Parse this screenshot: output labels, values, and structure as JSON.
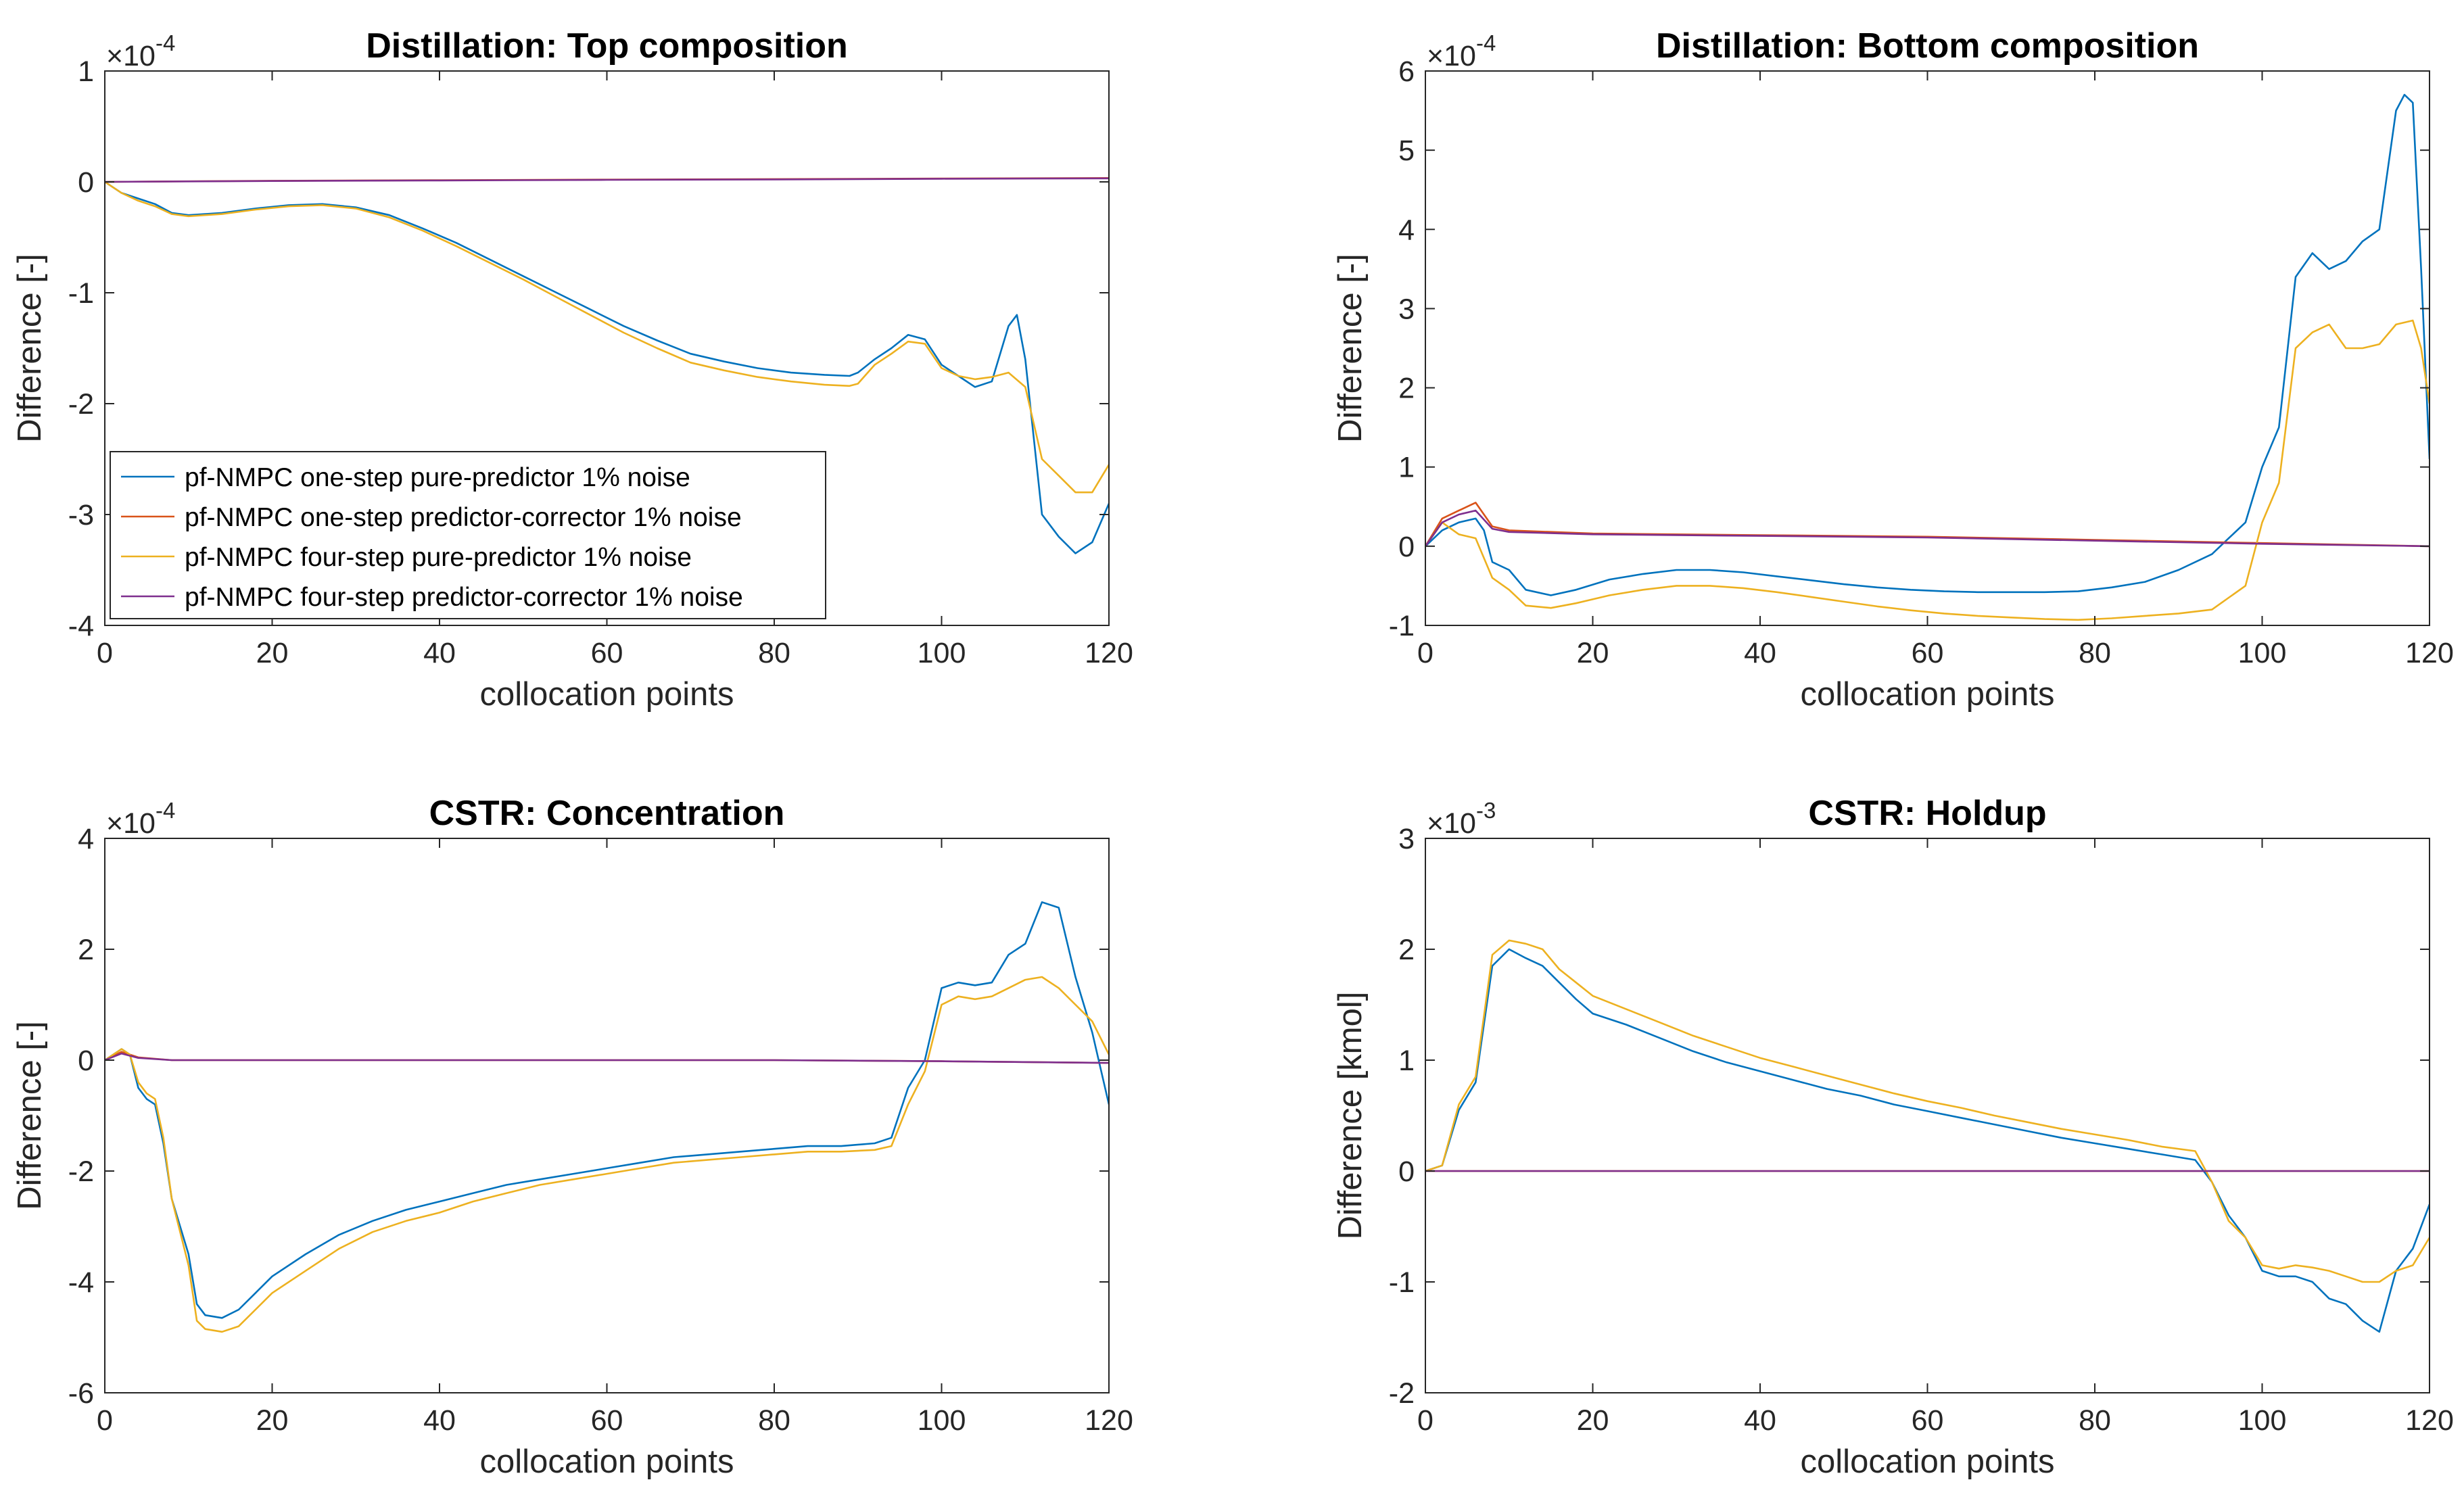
{
  "figure": {
    "colors": {
      "s1": "#0072BD",
      "s2": "#D95319",
      "s3": "#EDB120",
      "s4": "#7E2F8E"
    },
    "legend": {
      "entries": [
        "pf-NMPC one-step pure-predictor 1% noise",
        "pf-NMPC one-step predictor-corrector 1% noise",
        "pf-NMPC four-step pure-predictor 1% noise",
        "pf-NMPC four-step predictor-corrector 1% noise"
      ]
    }
  },
  "chart_data": [
    {
      "type": "line",
      "title": "Distillation: Top composition",
      "xlabel": "collocation points",
      "ylabel": "Difference [-]",
      "xlim": [
        0,
        120
      ],
      "ylim": [
        -4,
        1
      ],
      "xticks": [
        0,
        20,
        40,
        60,
        80,
        100,
        120
      ],
      "yticks": [
        -4,
        -3,
        -2,
        -1,
        0,
        1
      ],
      "ytick_labels": [
        "-4",
        "-3",
        "-2",
        "-1",
        "0",
        "1"
      ],
      "exponent_base": "×10",
      "exponent_power": "-4",
      "legend_position": "lower-left",
      "series": [
        {
          "name": "pf-NMPC one-step pure-predictor 1% noise",
          "x": [
            0,
            2,
            4,
            6,
            8,
            10,
            14,
            18,
            22,
            26,
            30,
            34,
            38,
            42,
            46,
            50,
            54,
            58,
            62,
            66,
            70,
            74,
            78,
            82,
            86,
            89,
            90,
            92,
            94,
            96,
            98,
            100,
            102,
            104,
            106,
            108,
            109,
            110,
            112,
            114,
            116,
            118,
            120
          ],
          "y": [
            0,
            -0.1,
            -0.15,
            -0.2,
            -0.28,
            -0.3,
            -0.28,
            -0.24,
            -0.21,
            -0.2,
            -0.23,
            -0.3,
            -0.42,
            -0.55,
            -0.7,
            -0.85,
            -1.0,
            -1.15,
            -1.3,
            -1.43,
            -1.55,
            -1.62,
            -1.68,
            -1.72,
            -1.74,
            -1.75,
            -1.72,
            -1.6,
            -1.5,
            -1.38,
            -1.42,
            -1.65,
            -1.75,
            -1.85,
            -1.8,
            -1.3,
            -1.2,
            -1.6,
            -3.0,
            -3.2,
            -3.35,
            -3.25,
            -2.9
          ]
        },
        {
          "name": "pf-NMPC one-step predictor-corrector 1% noise",
          "x": [
            0,
            20,
            40,
            60,
            80,
            100,
            120
          ],
          "y": [
            0,
            0.01,
            0.015,
            0.02,
            0.025,
            0.03,
            0.035
          ]
        },
        {
          "name": "pf-NMPC four-step pure-predictor 1% noise",
          "x": [
            0,
            2,
            4,
            6,
            8,
            10,
            14,
            18,
            22,
            26,
            30,
            34,
            38,
            42,
            46,
            50,
            54,
            58,
            62,
            66,
            70,
            74,
            78,
            82,
            86,
            89,
            90,
            92,
            94,
            96,
            98,
            100,
            102,
            104,
            106,
            108,
            110,
            112,
            114,
            116,
            118,
            120
          ],
          "y": [
            0,
            -0.1,
            -0.17,
            -0.22,
            -0.29,
            -0.31,
            -0.29,
            -0.25,
            -0.22,
            -0.21,
            -0.24,
            -0.32,
            -0.44,
            -0.58,
            -0.73,
            -0.88,
            -1.04,
            -1.2,
            -1.36,
            -1.5,
            -1.63,
            -1.7,
            -1.76,
            -1.8,
            -1.83,
            -1.84,
            -1.82,
            -1.65,
            -1.55,
            -1.44,
            -1.46,
            -1.68,
            -1.75,
            -1.78,
            -1.76,
            -1.72,
            -1.85,
            -2.5,
            -2.65,
            -2.8,
            -2.8,
            -2.55
          ]
        },
        {
          "name": "pf-NMPC four-step predictor-corrector 1% noise",
          "x": [
            0,
            20,
            40,
            60,
            80,
            100,
            120
          ],
          "y": [
            0,
            0.008,
            0.013,
            0.018,
            0.022,
            0.028,
            0.032
          ]
        }
      ]
    },
    {
      "type": "line",
      "title": "Distillation: Bottom composition",
      "xlabel": "collocation points",
      "ylabel": "Difference [-]",
      "xlim": [
        0,
        120
      ],
      "ylim": [
        -1,
        6
      ],
      "xticks": [
        0,
        20,
        40,
        60,
        80,
        100,
        120
      ],
      "yticks": [
        -1,
        0,
        1,
        2,
        3,
        4,
        5,
        6
      ],
      "ytick_labels": [
        "-1",
        "0",
        "1",
        "2",
        "3",
        "4",
        "5",
        "6"
      ],
      "exponent_base": "×10",
      "exponent_power": "-4",
      "series": [
        {
          "name": "pf-NMPC one-step pure-predictor 1% noise",
          "x": [
            0,
            2,
            4,
            6,
            7,
            8,
            10,
            12,
            15,
            18,
            22,
            26,
            30,
            34,
            38,
            42,
            46,
            50,
            54,
            58,
            62,
            66,
            70,
            74,
            78,
            82,
            86,
            90,
            94,
            96,
            98,
            100,
            102,
            104,
            106,
            108,
            110,
            112,
            114,
            116,
            117,
            118,
            119,
            120
          ],
          "y": [
            0,
            0.2,
            0.3,
            0.35,
            0.2,
            -0.2,
            -0.3,
            -0.55,
            -0.62,
            -0.55,
            -0.42,
            -0.35,
            -0.3,
            -0.3,
            -0.33,
            -0.38,
            -0.43,
            -0.48,
            -0.52,
            -0.55,
            -0.57,
            -0.58,
            -0.58,
            -0.58,
            -0.57,
            -0.52,
            -0.45,
            -0.3,
            -0.1,
            0.1,
            0.3,
            1.0,
            1.5,
            3.4,
            3.7,
            3.5,
            3.6,
            3.85,
            4.0,
            5.5,
            5.7,
            5.6,
            3.5,
            1.1
          ]
        },
        {
          "name": "pf-NMPC one-step predictor-corrector 1% noise",
          "x": [
            0,
            2,
            4,
            6,
            8,
            10,
            20,
            40,
            60,
            80,
            100,
            120
          ],
          "y": [
            0,
            0.35,
            0.45,
            0.55,
            0.25,
            0.2,
            0.16,
            0.14,
            0.12,
            0.08,
            0.04,
            0.0
          ]
        },
        {
          "name": "pf-NMPC four-step pure-predictor 1% noise",
          "x": [
            0,
            2,
            4,
            6,
            7,
            8,
            10,
            12,
            15,
            18,
            22,
            26,
            30,
            34,
            38,
            42,
            46,
            50,
            54,
            58,
            62,
            66,
            70,
            74,
            78,
            82,
            86,
            90,
            94,
            96,
            98,
            100,
            102,
            104,
            106,
            108,
            110,
            112,
            114,
            116,
            118,
            119,
            120
          ],
          "y": [
            0,
            0.3,
            0.15,
            0.1,
            -0.15,
            -0.4,
            -0.55,
            -0.75,
            -0.78,
            -0.72,
            -0.62,
            -0.55,
            -0.5,
            -0.5,
            -0.53,
            -0.58,
            -0.64,
            -0.7,
            -0.76,
            -0.81,
            -0.85,
            -0.88,
            -0.9,
            -0.92,
            -0.93,
            -0.91,
            -0.88,
            -0.85,
            -0.8,
            -0.65,
            -0.5,
            0.3,
            0.8,
            2.5,
            2.7,
            2.8,
            2.5,
            2.5,
            2.55,
            2.8,
            2.85,
            2.5,
            1.8
          ]
        },
        {
          "name": "pf-NMPC four-step predictor-corrector 1% noise",
          "x": [
            0,
            2,
            4,
            6,
            8,
            10,
            20,
            40,
            60,
            80,
            100,
            120
          ],
          "y": [
            0,
            0.3,
            0.4,
            0.45,
            0.22,
            0.18,
            0.15,
            0.13,
            0.11,
            0.07,
            0.03,
            0.0
          ]
        }
      ]
    },
    {
      "type": "line",
      "title": "CSTR: Concentration",
      "xlabel": "collocation points",
      "ylabel": "Difference [-]",
      "xlim": [
        0,
        120
      ],
      "ylim": [
        -6,
        4
      ],
      "xticks": [
        0,
        20,
        40,
        60,
        80,
        100,
        120
      ],
      "yticks": [
        -6,
        -4,
        -2,
        0,
        2,
        4
      ],
      "ytick_labels": [
        "-6",
        "-4",
        "-2",
        "0",
        "2",
        "4"
      ],
      "exponent_base": "×10",
      "exponent_power": "-4",
      "series": [
        {
          "name": "pf-NMPC one-step pure-predictor 1% noise",
          "x": [
            0,
            1,
            2,
            3,
            4,
            5,
            6,
            7,
            8,
            10,
            11,
            12,
            14,
            16,
            18,
            20,
            24,
            28,
            32,
            36,
            40,
            44,
            48,
            52,
            56,
            60,
            64,
            68,
            72,
            76,
            80,
            84,
            88,
            92,
            94,
            96,
            98,
            100,
            102,
            104,
            106,
            108,
            110,
            112,
            114,
            116,
            118,
            120
          ],
          "y": [
            0,
            0.1,
            0.2,
            0.1,
            -0.5,
            -0.7,
            -0.8,
            -1.5,
            -2.5,
            -3.5,
            -4.4,
            -4.6,
            -4.65,
            -4.5,
            -4.2,
            -3.9,
            -3.5,
            -3.15,
            -2.9,
            -2.7,
            -2.55,
            -2.4,
            -2.25,
            -2.15,
            -2.05,
            -1.95,
            -1.85,
            -1.75,
            -1.7,
            -1.65,
            -1.6,
            -1.55,
            -1.55,
            -1.5,
            -1.4,
            -0.5,
            0.0,
            1.3,
            1.4,
            1.35,
            1.4,
            1.9,
            2.1,
            2.85,
            2.75,
            1.5,
            0.5,
            -0.8
          ]
        },
        {
          "name": "pf-NMPC one-step predictor-corrector 1% noise",
          "x": [
            0,
            2,
            4,
            8,
            20,
            40,
            60,
            80,
            100,
            120
          ],
          "y": [
            0,
            0.15,
            0.05,
            0.0,
            0.0,
            0.0,
            0.0,
            0.0,
            -0.02,
            -0.05
          ]
        },
        {
          "name": "pf-NMPC four-step pure-predictor 1% noise",
          "x": [
            0,
            1,
            2,
            3,
            4,
            5,
            6,
            7,
            8,
            10,
            11,
            12,
            14,
            16,
            18,
            20,
            24,
            28,
            32,
            36,
            40,
            44,
            48,
            52,
            56,
            60,
            64,
            68,
            72,
            76,
            80,
            84,
            88,
            92,
            94,
            96,
            98,
            100,
            102,
            104,
            106,
            108,
            110,
            112,
            114,
            116,
            118,
            120
          ],
          "y": [
            0,
            0.1,
            0.2,
            0.1,
            -0.4,
            -0.6,
            -0.7,
            -1.4,
            -2.5,
            -3.7,
            -4.7,
            -4.85,
            -4.9,
            -4.8,
            -4.5,
            -4.2,
            -3.8,
            -3.4,
            -3.1,
            -2.9,
            -2.75,
            -2.55,
            -2.4,
            -2.25,
            -2.15,
            -2.05,
            -1.95,
            -1.85,
            -1.8,
            -1.75,
            -1.7,
            -1.65,
            -1.65,
            -1.62,
            -1.55,
            -0.8,
            -0.2,
            1.0,
            1.15,
            1.1,
            1.15,
            1.3,
            1.45,
            1.5,
            1.3,
            1.0,
            0.7,
            0.1
          ]
        },
        {
          "name": "pf-NMPC four-step predictor-corrector 1% noise",
          "x": [
            0,
            2,
            4,
            8,
            20,
            40,
            60,
            80,
            100,
            120
          ],
          "y": [
            0,
            0.12,
            0.04,
            0.0,
            0.0,
            0.0,
            0.0,
            0.0,
            -0.02,
            -0.05
          ]
        }
      ]
    },
    {
      "type": "line",
      "title": "CSTR: Holdup",
      "xlabel": "collocation points",
      "ylabel": "Difference [kmol]",
      "xlim": [
        0,
        120
      ],
      "ylim": [
        -2,
        3
      ],
      "xticks": [
        0,
        20,
        40,
        60,
        80,
        100,
        120
      ],
      "yticks": [
        -2,
        -1,
        0,
        1,
        2,
        3
      ],
      "ytick_labels": [
        "-2",
        "-1",
        "0",
        "1",
        "2",
        "3"
      ],
      "exponent_base": "×10",
      "exponent_power": "-3",
      "series": [
        {
          "name": "pf-NMPC one-step pure-predictor 1% noise",
          "x": [
            0,
            2,
            4,
            6,
            8,
            10,
            12,
            14,
            16,
            18,
            20,
            24,
            28,
            32,
            36,
            40,
            44,
            48,
            52,
            56,
            60,
            64,
            68,
            72,
            76,
            80,
            84,
            88,
            92,
            94,
            96,
            98,
            100,
            102,
            104,
            106,
            108,
            110,
            112,
            114,
            116,
            118,
            120
          ],
          "y": [
            0,
            0.05,
            0.55,
            0.8,
            1.85,
            2.0,
            1.92,
            1.85,
            1.7,
            1.55,
            1.42,
            1.32,
            1.2,
            1.08,
            0.98,
            0.9,
            0.82,
            0.74,
            0.68,
            0.6,
            0.54,
            0.48,
            0.42,
            0.36,
            0.3,
            0.25,
            0.2,
            0.15,
            0.1,
            -0.1,
            -0.4,
            -0.6,
            -0.9,
            -0.95,
            -0.95,
            -1.0,
            -1.15,
            -1.2,
            -1.35,
            -1.45,
            -0.9,
            -0.7,
            -0.3
          ]
        },
        {
          "name": "pf-NMPC one-step predictor-corrector 1% noise",
          "x": [
            0,
            20,
            40,
            60,
            80,
            100,
            120
          ],
          "y": [
            0,
            0.0,
            0.0,
            0.0,
            0.0,
            0.0,
            0.0
          ]
        },
        {
          "name": "pf-NMPC four-step pure-predictor 1% noise",
          "x": [
            0,
            2,
            4,
            6,
            8,
            10,
            12,
            14,
            16,
            18,
            20,
            24,
            28,
            32,
            36,
            40,
            44,
            48,
            52,
            56,
            60,
            64,
            68,
            72,
            76,
            80,
            84,
            88,
            92,
            94,
            96,
            98,
            100,
            102,
            104,
            106,
            108,
            110,
            112,
            114,
            116,
            118,
            120
          ],
          "y": [
            0,
            0.05,
            0.6,
            0.85,
            1.95,
            2.08,
            2.05,
            2.0,
            1.82,
            1.7,
            1.58,
            1.46,
            1.34,
            1.22,
            1.12,
            1.02,
            0.94,
            0.86,
            0.78,
            0.7,
            0.63,
            0.57,
            0.5,
            0.44,
            0.38,
            0.33,
            0.28,
            0.22,
            0.18,
            -0.1,
            -0.45,
            -0.6,
            -0.85,
            -0.88,
            -0.85,
            -0.87,
            -0.9,
            -0.95,
            -1.0,
            -1.0,
            -0.9,
            -0.85,
            -0.6
          ]
        },
        {
          "name": "pf-NMPC four-step predictor-corrector 1% noise",
          "x": [
            0,
            20,
            40,
            60,
            80,
            100,
            120
          ],
          "y": [
            0,
            0.0,
            0.0,
            0.0,
            0.0,
            0.0,
            0.0
          ]
        }
      ]
    }
  ]
}
